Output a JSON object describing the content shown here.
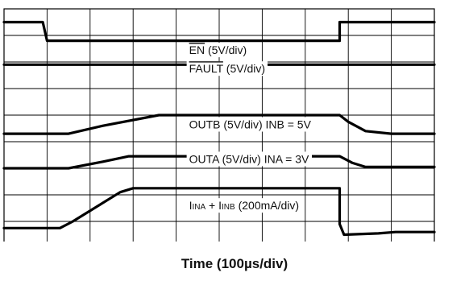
{
  "chart_data": {
    "type": "line",
    "title": "",
    "xlabel": "Time (100µs/div)",
    "ylabel": "",
    "grid": true,
    "legend": "none",
    "divisions": {
      "x": 10,
      "y": 9
    },
    "xlim": [
      0,
      1000
    ],
    "x_unit": "µs",
    "ylim": [
      0,
      9
    ],
    "y_unit": "div",
    "series": [
      {
        "label_parts": [
          {
            "text": "EN",
            "overline": true
          },
          {
            "text": " (5V/div)"
          }
        ],
        "label_x": 430,
        "label_y": 7.3,
        "points": [
          [
            0,
            8.5
          ],
          [
            90,
            8.5
          ],
          [
            100,
            7.8
          ],
          [
            780,
            7.8
          ],
          [
            780,
            8.5
          ],
          [
            1000,
            8.5
          ]
        ]
      },
      {
        "label_parts": [
          {
            "text": "FAULT",
            "overline": true
          },
          {
            "text": " (5V/div)"
          }
        ],
        "label_x": 430,
        "label_y": 6.6,
        "points": [
          [
            0,
            6.9
          ],
          [
            1000,
            6.9
          ]
        ]
      },
      {
        "label_parts": [
          {
            "text": "OUTB (5V/div)  INB = 5V"
          }
        ],
        "label_x": 430,
        "label_y": 4.5,
        "points": [
          [
            0,
            4.3
          ],
          [
            150,
            4.3
          ],
          [
            230,
            4.6
          ],
          [
            360,
            5.0
          ],
          [
            780,
            5.0
          ],
          [
            800,
            4.75
          ],
          [
            840,
            4.4
          ],
          [
            900,
            4.3
          ],
          [
            1000,
            4.3
          ]
        ]
      },
      {
        "label_parts": [
          {
            "text": "OUTA (5V/div)  INA = 3V"
          }
        ],
        "label_x": 430,
        "label_y": 3.2,
        "points": [
          [
            0,
            3.0
          ],
          [
            150,
            3.0
          ],
          [
            230,
            3.25
          ],
          [
            290,
            3.45
          ],
          [
            780,
            3.45
          ],
          [
            810,
            3.2
          ],
          [
            840,
            3.05
          ],
          [
            1000,
            3.05
          ]
        ]
      },
      {
        "label_parts": [
          {
            "text": "I"
          },
          {
            "text": "INA",
            "sub": true
          },
          {
            "text": " + I"
          },
          {
            "text": "INB",
            "sub": true
          },
          {
            "text": " (200mA/div)"
          }
        ],
        "label_x": 430,
        "label_y": 1.45,
        "points": [
          [
            0,
            0.75
          ],
          [
            130,
            0.75
          ],
          [
            160,
            1.0
          ],
          [
            270,
            2.1
          ],
          [
            300,
            2.25
          ],
          [
            780,
            2.25
          ],
          [
            780,
            0.9
          ],
          [
            790,
            0.5
          ],
          [
            870,
            0.55
          ],
          [
            910,
            0.6
          ],
          [
            1000,
            0.6
          ]
        ]
      }
    ]
  }
}
